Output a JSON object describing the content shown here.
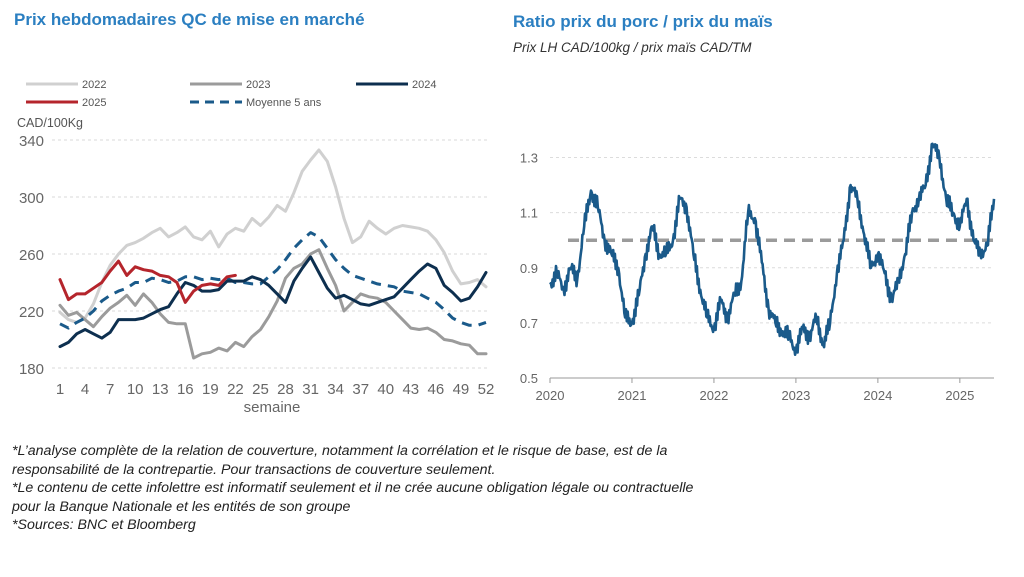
{
  "left_title": "Prix hebdomadaires QC de mise en marché",
  "right_title": "Ratio prix du porc / prix du maïs",
  "right_subtitle": "Prix LH CAD/100kg / prix maïs CAD/TM",
  "chart_data": [
    {
      "type": "line",
      "ylabel": "CAD/100Kg",
      "xlabel": "semaine",
      "ylim": [
        180,
        340
      ],
      "yticks": [
        180,
        220,
        260,
        300,
        340
      ],
      "xlim": [
        1,
        52
      ],
      "xticks": [
        1,
        4,
        7,
        10,
        13,
        16,
        19,
        22,
        25,
        28,
        31,
        34,
        37,
        40,
        43,
        46,
        49,
        52
      ],
      "legend_position": "top",
      "series": [
        {
          "name": "2022",
          "color": "#d0d0d0",
          "x": [
            1,
            2,
            3,
            4,
            5,
            6,
            7,
            8,
            9,
            10,
            11,
            12,
            13,
            14,
            15,
            16,
            17,
            18,
            19,
            20,
            21,
            22,
            23,
            24,
            25,
            26,
            27,
            28,
            29,
            30,
            31,
            32,
            33,
            34,
            35,
            36,
            37,
            38,
            39,
            40,
            41,
            42,
            43,
            44,
            45,
            46,
            47,
            48,
            49,
            50,
            51,
            52
          ],
          "values": [
            219,
            214,
            212,
            215,
            225,
            240,
            252,
            260,
            266,
            268,
            271,
            275,
            278,
            272,
            275,
            279,
            272,
            270,
            276,
            265,
            274,
            278,
            276,
            285,
            280,
            286,
            294,
            290,
            303,
            318,
            326,
            333,
            325,
            307,
            285,
            268,
            272,
            283,
            278,
            274,
            278,
            280,
            279,
            278,
            276,
            270,
            261,
            248,
            239,
            240,
            242,
            237
          ]
        },
        {
          "name": "2023",
          "color": "#9b9b9b",
          "x": [
            1,
            2,
            3,
            4,
            5,
            6,
            7,
            8,
            9,
            10,
            11,
            12,
            13,
            14,
            15,
            16,
            17,
            18,
            19,
            20,
            21,
            22,
            23,
            24,
            25,
            26,
            27,
            28,
            29,
            30,
            31,
            32,
            33,
            34,
            35,
            36,
            37,
            38,
            39,
            40,
            41,
            42,
            43,
            44,
            45,
            46,
            47,
            48,
            49,
            50,
            51,
            52
          ],
          "values": [
            224,
            217,
            219,
            214,
            209,
            216,
            222,
            226,
            231,
            224,
            232,
            226,
            218,
            212,
            211,
            211,
            187,
            190,
            191,
            194,
            192,
            198,
            195,
            202,
            207,
            216,
            227,
            243,
            250,
            253,
            260,
            263,
            250,
            238,
            220,
            226,
            232,
            230,
            229,
            226,
            220,
            214,
            208,
            207,
            208,
            205,
            200,
            199,
            197,
            196,
            190,
            190
          ]
        },
        {
          "name": "2024",
          "color": "#0d2f4f",
          "x": [
            1,
            2,
            3,
            4,
            5,
            6,
            7,
            8,
            9,
            10,
            11,
            12,
            13,
            14,
            15,
            16,
            17,
            18,
            19,
            20,
            21,
            22,
            23,
            24,
            25,
            26,
            27,
            28,
            29,
            30,
            31,
            32,
            33,
            34,
            35,
            36,
            37,
            38,
            39,
            40,
            41,
            42,
            43,
            44,
            45,
            46,
            47,
            48,
            49,
            50,
            51,
            52
          ],
          "values": [
            195,
            198,
            204,
            207,
            204,
            201,
            205,
            214,
            214,
            214,
            215,
            218,
            221,
            223,
            232,
            240,
            238,
            234,
            234,
            235,
            241,
            241,
            241,
            244,
            242,
            238,
            232,
            226,
            241,
            250,
            258,
            247,
            236,
            229,
            231,
            228,
            225,
            224,
            226,
            228,
            230,
            236,
            242,
            248,
            253,
            250,
            238,
            233,
            227,
            229,
            237,
            247
          ]
        },
        {
          "name": "2025",
          "color": "#b5252c",
          "x": [
            1,
            2,
            3,
            4,
            5,
            6,
            7,
            8,
            9,
            10,
            11,
            12,
            13,
            14,
            15,
            16,
            17,
            18,
            19,
            20,
            21,
            22
          ],
          "values": [
            242,
            228,
            232,
            232,
            236,
            240,
            248,
            255,
            245,
            251,
            249,
            248,
            245,
            244,
            240,
            226,
            234,
            238,
            239,
            238,
            244,
            245
          ]
        },
        {
          "name": "Moyenne 5 ans",
          "color": "#1a5a8a",
          "dashed": true,
          "x": [
            1,
            2,
            3,
            4,
            5,
            6,
            7,
            8,
            9,
            10,
            11,
            12,
            13,
            14,
            15,
            16,
            17,
            18,
            19,
            20,
            21,
            22,
            23,
            24,
            25,
            26,
            27,
            28,
            29,
            30,
            31,
            32,
            33,
            34,
            35,
            36,
            37,
            38,
            39,
            40,
            41,
            42,
            43,
            44,
            45,
            46,
            47,
            48,
            49,
            50,
            51,
            52
          ],
          "values": [
            211,
            208,
            212,
            215,
            220,
            227,
            231,
            234,
            236,
            240,
            240,
            243,
            242,
            240,
            241,
            244,
            244,
            242,
            243,
            242,
            243,
            240,
            240,
            239,
            239,
            244,
            249,
            256,
            264,
            270,
            275,
            272,
            264,
            256,
            250,
            245,
            243,
            241,
            239,
            238,
            237,
            234,
            233,
            232,
            229,
            226,
            221,
            215,
            212,
            210,
            210,
            212
          ]
        }
      ]
    },
    {
      "type": "line",
      "ylim": [
        0.5,
        1.4
      ],
      "yticks": [
        0.5,
        0.7,
        0.9,
        1.1,
        1.3
      ],
      "xlim": [
        "2020-01",
        "2025-06"
      ],
      "xticks": [
        "2020",
        "2021",
        "2022",
        "2023",
        "2024",
        "2025"
      ],
      "reference_line": {
        "value": 1.0,
        "color": "#9b9b9b",
        "dashed": true
      },
      "series": [
        {
          "color": "#1a5a8a",
          "x": [
            "2020-01",
            "2020-02",
            "2020-03",
            "2020-04",
            "2020-05",
            "2020-06",
            "2020-07",
            "2020-08",
            "2020-09",
            "2020-10",
            "2020-11",
            "2020-12",
            "2021-01",
            "2021-02",
            "2021-03",
            "2021-04",
            "2021-05",
            "2021-06",
            "2021-07",
            "2021-08",
            "2021-09",
            "2021-10",
            "2021-11",
            "2021-12",
            "2022-01",
            "2022-02",
            "2022-03",
            "2022-04",
            "2022-05",
            "2022-06",
            "2022-07",
            "2022-08",
            "2022-09",
            "2022-10",
            "2022-11",
            "2022-12",
            "2023-01",
            "2023-02",
            "2023-03",
            "2023-04",
            "2023-05",
            "2023-06",
            "2023-07",
            "2023-08",
            "2023-09",
            "2023-10",
            "2023-11",
            "2023-12",
            "2024-01",
            "2024-02",
            "2024-03",
            "2024-04",
            "2024-05",
            "2024-06",
            "2024-07",
            "2024-08",
            "2024-09",
            "2024-10",
            "2024-11",
            "2024-12",
            "2025-01",
            "2025-02",
            "2025-03",
            "2025-04",
            "2025-05",
            "2025-06"
          ],
          "values": [
            0.84,
            0.88,
            0.82,
            0.9,
            0.86,
            1.05,
            1.18,
            1.12,
            1.0,
            0.95,
            0.9,
            0.72,
            0.7,
            0.8,
            0.95,
            1.05,
            0.95,
            0.95,
            1.0,
            1.15,
            1.12,
            0.95,
            0.82,
            0.72,
            0.68,
            0.78,
            0.72,
            0.8,
            0.85,
            1.1,
            1.08,
            0.92,
            0.75,
            0.7,
            0.67,
            0.65,
            0.6,
            0.68,
            0.65,
            0.72,
            0.62,
            0.7,
            0.88,
            1.0,
            1.2,
            1.15,
            1.02,
            0.9,
            0.95,
            0.88,
            0.78,
            0.85,
            0.95,
            1.1,
            1.15,
            1.2,
            1.35,
            1.3,
            1.15,
            1.1,
            1.05,
            1.15,
            1.0,
            0.95,
            0.98,
            1.15
          ]
        }
      ]
    }
  ],
  "footnotes": [
    "*L’analyse complète de la relation de couverture, notamment la corrélation et le risque de base, est de la",
    "responsabilité de la contrepartie. Pour transactions de couverture seulement.",
    "*Le contenu de cette infolettre est informatif seulement et il ne crée aucune obligation légale ou contractuelle",
    "pour la Banque Nationale et les entités de son groupe",
    "*Sources: BNC et Bloomberg"
  ]
}
